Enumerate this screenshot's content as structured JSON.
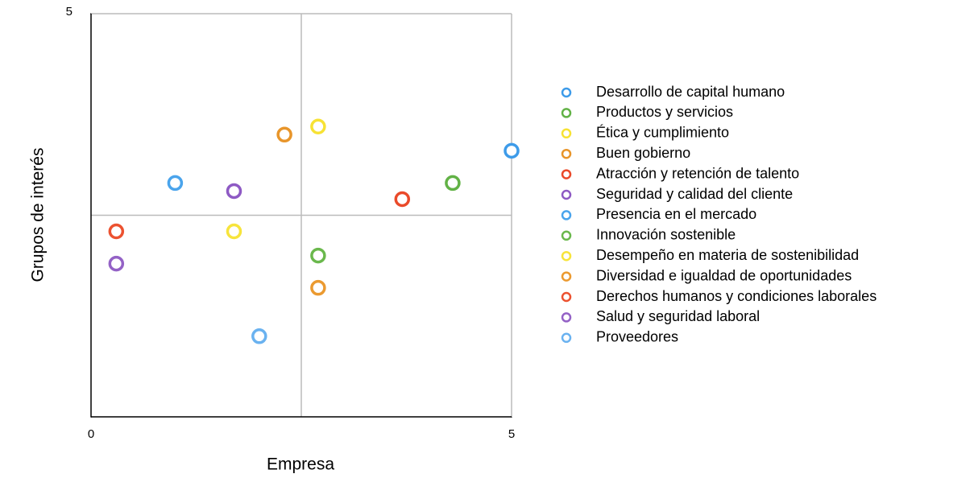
{
  "chart_data": {
    "type": "scatter",
    "xlabel": "Empresa",
    "ylabel": "Grupos de interés",
    "xlim": [
      0,
      5
    ],
    "ylim": [
      0,
      5
    ],
    "xticks": [
      0,
      5
    ],
    "yticks": [
      5
    ],
    "series": [
      {
        "name": "Desarrollo de capital humano",
        "color": "#3d9be9",
        "x": [
          5.0
        ],
        "values": [
          3.3
        ]
      },
      {
        "name": "Productos y servicios",
        "color": "#62b246",
        "x": [
          4.3
        ],
        "values": [
          2.9
        ]
      },
      {
        "name": "Ética y cumplimiento",
        "color": "#f7e234",
        "x": [
          2.7
        ],
        "values": [
          3.6
        ]
      },
      {
        "name": "Buen gobierno",
        "color": "#e8952a",
        "x": [
          2.3
        ],
        "values": [
          3.5
        ]
      },
      {
        "name": "Atracción y retención de talento",
        "color": "#ea4a2a",
        "x": [
          3.7
        ],
        "values": [
          2.7
        ]
      },
      {
        "name": "Seguridad y calidad del cliente",
        "color": "#8e5ac4",
        "x": [
          1.7
        ],
        "values": [
          2.8
        ]
      },
      {
        "name": "Presencia en el mercado",
        "color": "#4aa4ec",
        "x": [
          1.0
        ],
        "values": [
          2.9
        ]
      },
      {
        "name": "Innovación sostenible",
        "color": "#6ab84c",
        "x": [
          2.7
        ],
        "values": [
          2.0
        ]
      },
      {
        "name": "Desempeño en materia de sostenibilidad",
        "color": "#f7e43c",
        "x": [
          1.7
        ],
        "values": [
          2.3
        ]
      },
      {
        "name": "Diversidad e igualdad de oportunidades",
        "color": "#eb9a30",
        "x": [
          2.7
        ],
        "values": [
          1.6
        ]
      },
      {
        "name": "Derechos humanos y condiciones laborales",
        "color": "#ec5230",
        "x": [
          0.3
        ],
        "values": [
          2.3
        ]
      },
      {
        "name": "Salud y seguridad laboral",
        "color": "#9462c6",
        "x": [
          0.3
        ],
        "values": [
          1.9
        ]
      },
      {
        "name": "Proveedores",
        "color": "#6ab2f0",
        "x": [
          2.0
        ],
        "values": [
          1.0
        ]
      }
    ]
  }
}
